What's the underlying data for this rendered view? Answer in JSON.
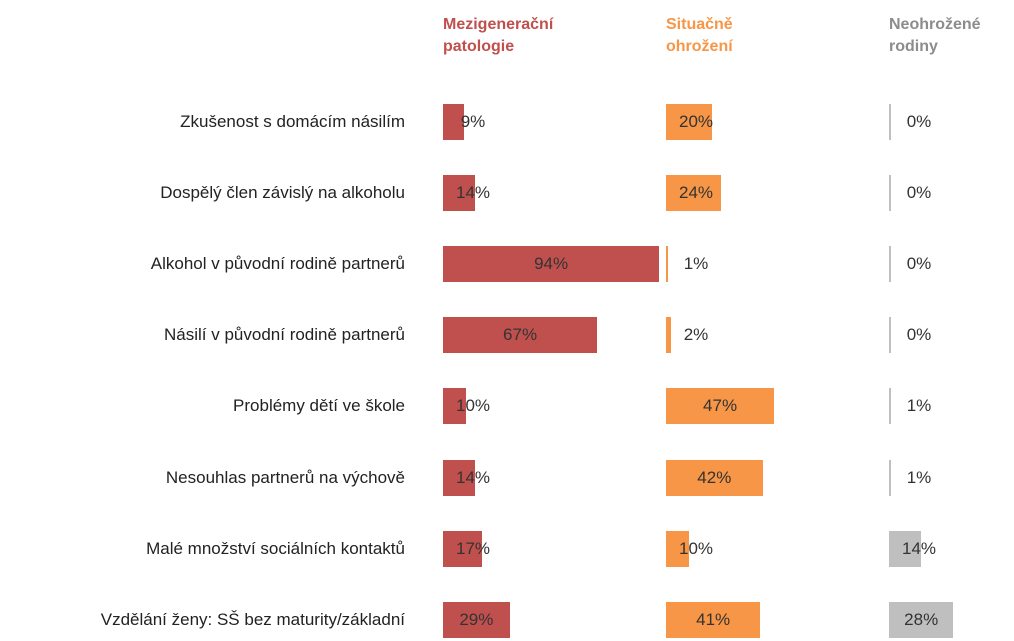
{
  "chart_data": {
    "type": "bar",
    "orientation": "horizontal",
    "categories": [
      "Zkušenost s domácím násilím",
      "Dospělý člen závislý na alkoholu",
      "Alkohol v původní rodině partnerů",
      "Násilí v původní rodině partnerů",
      "Problémy dětí ve škole",
      "Nesouhlas partnerů na výchově",
      "Malé množství sociálních kontaktů",
      "Vzdělání ženy: SŠ bez maturity/základní"
    ],
    "xlim": [
      0,
      100
    ],
    "series": [
      {
        "name": "Mezigenerační patologie",
        "color": "#c0504d",
        "values": [
          9,
          14,
          94,
          67,
          10,
          14,
          17,
          29
        ],
        "value_labels": [
          "9%",
          "14%",
          "94%",
          "67%",
          "10%",
          "14%",
          "17%",
          "29%"
        ]
      },
      {
        "name": "Situačně ohrožení",
        "color": "#f79646",
        "values": [
          20,
          24,
          1,
          2,
          47,
          42,
          10,
          41
        ],
        "value_labels": [
          "20%",
          "24%",
          "1%",
          "2%",
          "47%",
          "42%",
          "10%",
          "41%"
        ]
      },
      {
        "name": "Neohrožené rodiny",
        "color": "#bfbfbf",
        "values": [
          0,
          0,
          0,
          0,
          1,
          1,
          14,
          28
        ],
        "value_labels": [
          "0%",
          "0%",
          "0%",
          "0%",
          "1%",
          "1%",
          "14%",
          "28%"
        ]
      }
    ]
  }
}
